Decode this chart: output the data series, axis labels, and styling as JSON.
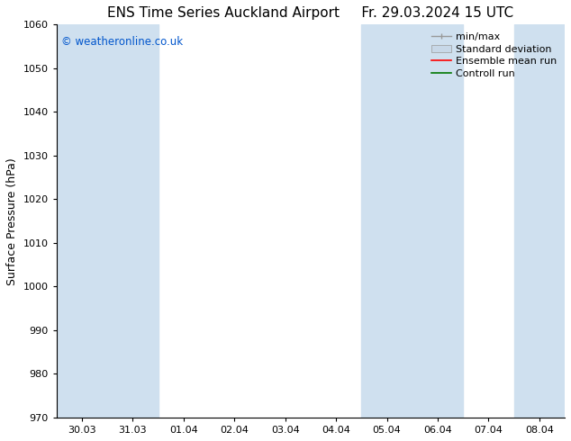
{
  "title_left": "ENS Time Series Auckland Airport",
  "title_right": "Fr. 29.03.2024 15 UTC",
  "ylabel": "Surface Pressure (hPa)",
  "watermark": "© weatheronline.co.uk",
  "watermark_color": "#0055cc",
  "ylim": [
    970,
    1060
  ],
  "yticks": [
    970,
    980,
    990,
    1000,
    1010,
    1020,
    1030,
    1040,
    1050,
    1060
  ],
  "xtick_labels": [
    "30.03",
    "31.03",
    "01.04",
    "02.04",
    "03.04",
    "04.04",
    "05.04",
    "06.04",
    "07.04",
    "08.04"
  ],
  "band_color": "#cfe0ef",
  "background_color": "#ffffff",
  "legend_items": [
    {
      "label": "min/max",
      "color": "#aaaaaa",
      "style": "minmax"
    },
    {
      "label": "Standard deviation",
      "color": "#b0c8dc",
      "style": "fill"
    },
    {
      "label": "Ensemble mean run",
      "color": "#ff0000",
      "style": "line"
    },
    {
      "label": "Controll run",
      "color": "#007700",
      "style": "line"
    }
  ],
  "title_fontsize": 11,
  "tick_fontsize": 8,
  "label_fontsize": 9,
  "legend_fontsize": 8
}
